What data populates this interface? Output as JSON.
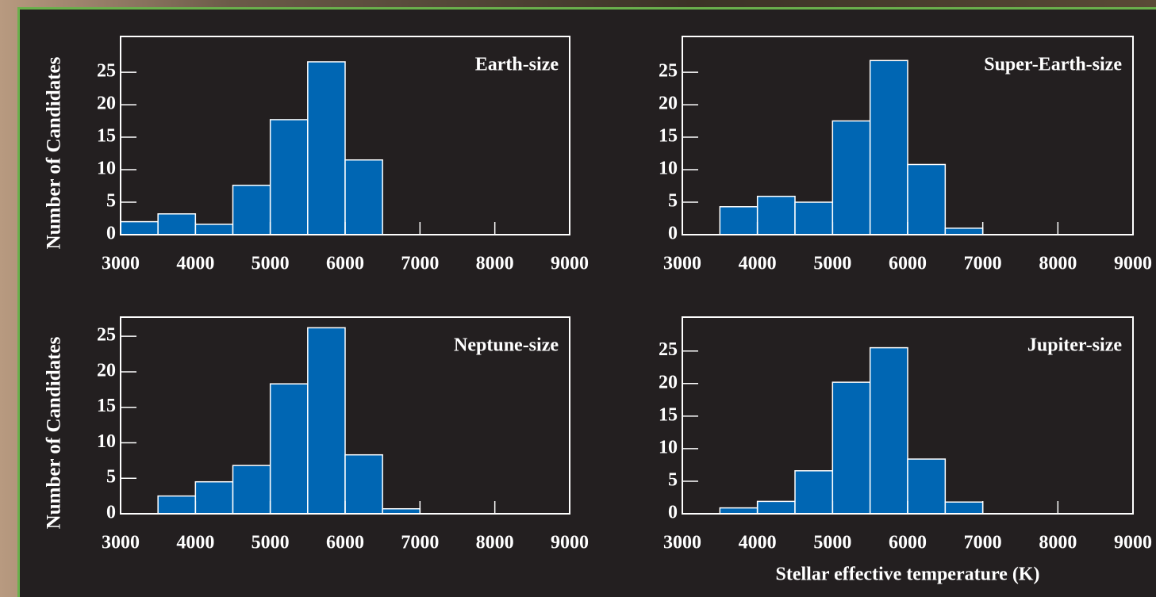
{
  "chart_data": [
    {
      "type": "histogram",
      "title": "Earth-size",
      "ylabel": "Number of Candidates",
      "bins": [
        3000,
        3500,
        4000,
        4500,
        5000,
        5500,
        6000,
        6500
      ],
      "values": [
        2,
        3.2,
        1.6,
        7.6,
        17.7,
        26.6,
        11.5
      ],
      "color": "#0066b3",
      "xlim": [
        3000,
        9000
      ],
      "xticks": [
        3000,
        4000,
        5000,
        6000,
        7000,
        8000,
        9000
      ],
      "ylim": [
        0,
        30.5
      ],
      "yticks": [
        0,
        5,
        10,
        15,
        20,
        25
      ]
    },
    {
      "type": "histogram",
      "title": "Super-Earth-size",
      "bins": [
        3500,
        4000,
        4500,
        5000,
        5500,
        6000,
        6500,
        7000
      ],
      "values": [
        4.3,
        5.9,
        5.0,
        17.5,
        26.8,
        10.8,
        1.0
      ],
      "color": "#0066b3",
      "xlim": [
        3000,
        9000
      ],
      "xticks": [
        3000,
        4000,
        5000,
        6000,
        7000,
        8000,
        9000
      ],
      "ylim": [
        0,
        30.5
      ],
      "yticks": [
        0,
        5,
        10,
        15,
        20,
        25
      ]
    },
    {
      "type": "histogram",
      "title": "Neptune-size",
      "ylabel": "Number of Candidates",
      "bins": [
        3500,
        4000,
        4500,
        5000,
        5500,
        6000,
        6500,
        7000
      ],
      "values": [
        2.5,
        4.5,
        6.8,
        18.3,
        26.2,
        8.3,
        0.7
      ],
      "color": "#0066b3",
      "xlim": [
        3000,
        9000
      ],
      "xticks": [
        3000,
        4000,
        5000,
        6000,
        7000,
        8000,
        9000
      ],
      "ylim": [
        0,
        27.7
      ],
      "yticks": [
        0,
        5,
        10,
        15,
        20,
        25
      ]
    },
    {
      "type": "histogram",
      "title": "Jupiter-size",
      "xlabel": "Stellar effective temperature (K)",
      "bins": [
        3500,
        4000,
        4500,
        5000,
        5500,
        6000,
        6500,
        7000
      ],
      "values": [
        0.9,
        1.9,
        6.6,
        20.2,
        25.5,
        8.4,
        1.8
      ],
      "color": "#0066b3",
      "xlim": [
        3000,
        9000
      ],
      "xticks": [
        3000,
        4000,
        5000,
        6000,
        7000,
        8000,
        9000
      ],
      "ylim": [
        0,
        30.2
      ],
      "yticks": [
        0,
        5,
        10,
        15,
        20,
        25
      ]
    }
  ]
}
